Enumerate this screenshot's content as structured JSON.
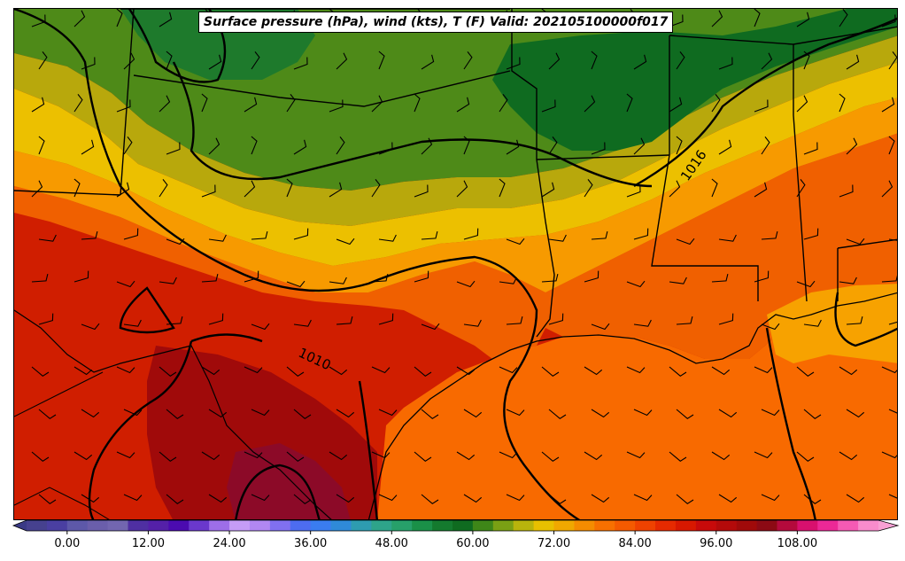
{
  "title": "Surface pressure (hPa), wind (kts), T (F) Valid: 202105100000f017",
  "isobar_labels": [
    "1010",
    "1016"
  ],
  "colorbar": {
    "vmin": -6,
    "vmax": 120,
    "step": 3,
    "ticks": [
      "0.00",
      "12.00",
      "24.00",
      "36.00",
      "48.00",
      "60.00",
      "72.00",
      "84.00",
      "96.00",
      "108.00"
    ],
    "tick_values": [
      0,
      12,
      24,
      36,
      48,
      60,
      72,
      84,
      96,
      108
    ],
    "extend": "both",
    "colors": [
      "#46418f",
      "#4a3fa1",
      "#5d58a9",
      "#6a5eab",
      "#7266b0",
      "#4f2fa2",
      "#5420a8",
      "#4b0bb0",
      "#6a38cc",
      "#9d6ee8",
      "#c59cf6",
      "#b187f2",
      "#8070f0",
      "#4d6cf0",
      "#3a7cf0",
      "#2f8ad8",
      "#2e9cb0",
      "#2ea48a",
      "#27a06a",
      "#1a9048",
      "#147a2e",
      "#0f6b20",
      "#3e8618",
      "#7aa014",
      "#b8b40c",
      "#e8c000",
      "#f0a800",
      "#f58c00",
      "#f77000",
      "#f45a00",
      "#ef4200",
      "#e62a00",
      "#d81800",
      "#c80a0a",
      "#b40a0a",
      "#a00a0a",
      "#8c0a14",
      "#b40a3c",
      "#d8106e",
      "#ec2896",
      "#f55ab4",
      "#f88ccc"
    ],
    "color_under": "#3a3a86",
    "color_over": "#f8a0d4"
  }
}
